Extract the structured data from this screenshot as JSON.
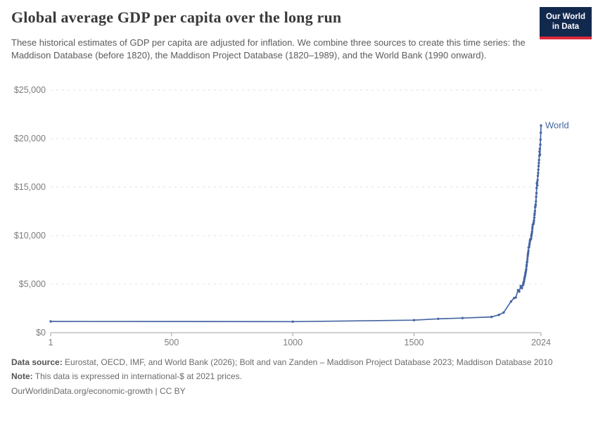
{
  "header": {
    "title": "Global average GDP per capita over the long run",
    "subtitle": "These historical estimates of GDP per capita are adjusted for inflation. We combine three sources to create this time series: the Maddison Database (before 1820), the Maddison Project Database (1820–1989), and the World Bank (1990 onward).",
    "logo_line1": "Our World",
    "logo_line2": "in Data",
    "logo_bg": "#12294e",
    "logo_accent": "#dc2a3c"
  },
  "chart_data": {
    "type": "line",
    "title": "Global average GDP per capita over the long run",
    "xlabel": "",
    "ylabel": "",
    "xlim": [
      1,
      2024
    ],
    "ylim": [
      0,
      25000
    ],
    "grid": "horizontal-dashed",
    "legend_position": "end-of-line-label",
    "line_color": "#4566a2",
    "label_color": "#4566a2",
    "axis_text_color": "#7d7d7d",
    "grid_color": "#e0e0e0",
    "axis_line_color": "#a1a1a1",
    "x_ticks": [
      {
        "value": 1,
        "label": "1"
      },
      {
        "value": 500,
        "label": "500"
      },
      {
        "value": 1000,
        "label": "1000"
      },
      {
        "value": 1500,
        "label": "1500"
      },
      {
        "value": 2024,
        "label": "2024"
      }
    ],
    "y_ticks": [
      {
        "value": 0,
        "label": "$0"
      },
      {
        "value": 5000,
        "label": "$5,000"
      },
      {
        "value": 10000,
        "label": "$10,000"
      },
      {
        "value": 15000,
        "label": "$15,000"
      },
      {
        "value": 20000,
        "label": "$20,000"
      },
      {
        "value": 25000,
        "label": "$25,000"
      }
    ],
    "series": [
      {
        "name": "World",
        "points": [
          [
            1,
            1160
          ],
          [
            1000,
            1140
          ],
          [
            1500,
            1290
          ],
          [
            1600,
            1430
          ],
          [
            1700,
            1510
          ],
          [
            1820,
            1620
          ],
          [
            1850,
            1830
          ],
          [
            1870,
            2080
          ],
          [
            1900,
            3210
          ],
          [
            1913,
            3570
          ],
          [
            1920,
            3630
          ],
          [
            1929,
            4390
          ],
          [
            1934,
            4230
          ],
          [
            1940,
            4810
          ],
          [
            1945,
            4580
          ],
          [
            1950,
            4910
          ],
          [
            1951,
            5030
          ],
          [
            1952,
            5130
          ],
          [
            1953,
            5260
          ],
          [
            1954,
            5310
          ],
          [
            1955,
            5510
          ],
          [
            1956,
            5640
          ],
          [
            1957,
            5740
          ],
          [
            1958,
            5830
          ],
          [
            1959,
            5980
          ],
          [
            1960,
            6150
          ],
          [
            1961,
            6240
          ],
          [
            1962,
            6400
          ],
          [
            1963,
            6560
          ],
          [
            1964,
            6820
          ],
          [
            1965,
            7000
          ],
          [
            1966,
            7220
          ],
          [
            1967,
            7370
          ],
          [
            1968,
            7620
          ],
          [
            1969,
            7890
          ],
          [
            1970,
            8090
          ],
          [
            1971,
            8230
          ],
          [
            1972,
            8440
          ],
          [
            1973,
            8770
          ],
          [
            1974,
            8820
          ],
          [
            1975,
            8830
          ],
          [
            1976,
            9050
          ],
          [
            1977,
            9210
          ],
          [
            1978,
            9410
          ],
          [
            1979,
            9560
          ],
          [
            1980,
            9610
          ],
          [
            1981,
            9650
          ],
          [
            1982,
            9610
          ],
          [
            1983,
            9700
          ],
          [
            1984,
            9930
          ],
          [
            1985,
            10090
          ],
          [
            1986,
            10230
          ],
          [
            1987,
            10420
          ],
          [
            1988,
            10670
          ],
          [
            1989,
            10870
          ],
          [
            1990,
            11110
          ],
          [
            1991,
            11150
          ],
          [
            1992,
            11170
          ],
          [
            1993,
            11230
          ],
          [
            1994,
            11390
          ],
          [
            1995,
            11580
          ],
          [
            1996,
            11850
          ],
          [
            1997,
            12120
          ],
          [
            1998,
            12290
          ],
          [
            1999,
            12530
          ],
          [
            2000,
            12910
          ],
          [
            2001,
            13050
          ],
          [
            2002,
            13210
          ],
          [
            2003,
            13520
          ],
          [
            2004,
            14000
          ],
          [
            2005,
            14380
          ],
          [
            2006,
            14890
          ],
          [
            2007,
            15380
          ],
          [
            2008,
            15500
          ],
          [
            2009,
            15170
          ],
          [
            2010,
            15730
          ],
          [
            2011,
            16160
          ],
          [
            2012,
            16440
          ],
          [
            2013,
            16790
          ],
          [
            2014,
            17170
          ],
          [
            2015,
            17480
          ],
          [
            2016,
            17790
          ],
          [
            2017,
            18240
          ],
          [
            2018,
            18660
          ],
          [
            2019,
            18950
          ],
          [
            2020,
            18330
          ],
          [
            2021,
            19370
          ],
          [
            2022,
            19900
          ],
          [
            2023,
            20600
          ],
          [
            2024,
            21350
          ]
        ]
      }
    ]
  },
  "footer": {
    "source_label": "Data source:",
    "source_text": " Eurostat, OECD, IMF, and World Bank (2026); Bolt and van Zanden – Maddison Project Database 2023; Maddison Database 2010",
    "note_label": "Note:",
    "note_text": " This data is expressed in international-$ at 2021 prices.",
    "url_line": "OurWorldinData.org/economic-growth | CC BY"
  }
}
